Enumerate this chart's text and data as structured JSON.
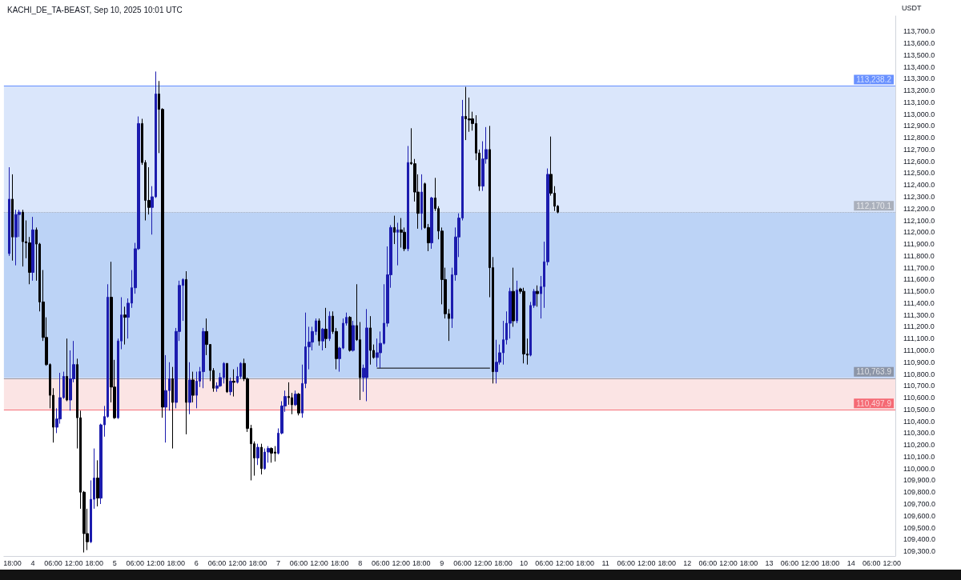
{
  "chart_data": {
    "type": "candlestick",
    "title": "KACHI_DE_TA-BEAST, Sep 10, 2025 10:01 UTC",
    "ylabel": "USDT",
    "xlim": [
      "2025-09-03T15:30",
      "2025-09-14T13:00"
    ],
    "xticks": [
      {
        "value": "2025-09-03T18:00",
        "label": "18:00"
      },
      {
        "value": "2025-09-04T00:00",
        "label": "4"
      },
      {
        "value": "2025-09-04T06:00",
        "label": "06:00"
      },
      {
        "value": "2025-09-04T12:00",
        "label": "12:00"
      },
      {
        "value": "2025-09-04T18:00",
        "label": "18:00"
      },
      {
        "value": "2025-09-05T00:00",
        "label": "5"
      },
      {
        "value": "2025-09-05T06:00",
        "label": "06:00"
      },
      {
        "value": "2025-09-05T12:00",
        "label": "12:00"
      },
      {
        "value": "2025-09-05T18:00",
        "label": "18:00"
      },
      {
        "value": "2025-09-06T00:00",
        "label": "6"
      },
      {
        "value": "2025-09-06T06:00",
        "label": "06:00"
      },
      {
        "value": "2025-09-06T12:00",
        "label": "12:00"
      },
      {
        "value": "2025-09-06T18:00",
        "label": "18:00"
      },
      {
        "value": "2025-09-07T00:00",
        "label": "7"
      },
      {
        "value": "2025-09-07T06:00",
        "label": "06:00"
      },
      {
        "value": "2025-09-07T12:00",
        "label": "12:00"
      },
      {
        "value": "2025-09-07T18:00",
        "label": "18:00"
      },
      {
        "value": "2025-09-08T00:00",
        "label": "8"
      },
      {
        "value": "2025-09-08T06:00",
        "label": "06:00"
      },
      {
        "value": "2025-09-08T12:00",
        "label": "12:00"
      },
      {
        "value": "2025-09-08T18:00",
        "label": "18:00"
      },
      {
        "value": "2025-09-09T00:00",
        "label": "9"
      },
      {
        "value": "2025-09-09T06:00",
        "label": "06:00"
      },
      {
        "value": "2025-09-09T12:00",
        "label": "12:00"
      },
      {
        "value": "2025-09-09T18:00",
        "label": "18:00"
      },
      {
        "value": "2025-09-10T00:00",
        "label": "10"
      },
      {
        "value": "2025-09-10T06:00",
        "label": "06:00"
      },
      {
        "value": "2025-09-10T12:00",
        "label": "12:00"
      },
      {
        "value": "2025-09-10T18:00",
        "label": "18:00"
      },
      {
        "value": "2025-09-11T00:00",
        "label": "11"
      },
      {
        "value": "2025-09-11T06:00",
        "label": "06:00"
      },
      {
        "value": "2025-09-11T12:00",
        "label": "12:00"
      },
      {
        "value": "2025-09-11T18:00",
        "label": "18:00"
      },
      {
        "value": "2025-09-12T00:00",
        "label": "12"
      },
      {
        "value": "2025-09-12T06:00",
        "label": "06:00"
      },
      {
        "value": "2025-09-12T12:00",
        "label": "12:00"
      },
      {
        "value": "2025-09-12T18:00",
        "label": "18:00"
      },
      {
        "value": "2025-09-13T00:00",
        "label": "13"
      },
      {
        "value": "2025-09-13T06:00",
        "label": "06:00"
      },
      {
        "value": "2025-09-13T12:00",
        "label": "12:00"
      },
      {
        "value": "2025-09-13T18:00",
        "label": "18:00"
      },
      {
        "value": "2025-09-14T00:00",
        "label": "14"
      },
      {
        "value": "2025-09-14T06:00",
        "label": "06:00"
      },
      {
        "value": "2025-09-14T12:00",
        "label": "12:00"
      }
    ],
    "ylim": [
      109260,
      113830
    ],
    "yticks": [
      {
        "value": 109300,
        "label": "109,300.0"
      },
      {
        "value": 109400,
        "label": "109,400.0"
      },
      {
        "value": 109500,
        "label": "109,500.0"
      },
      {
        "value": 109600,
        "label": "109,600.0"
      },
      {
        "value": 109700,
        "label": "109,700.0"
      },
      {
        "value": 109800,
        "label": "109,800.0"
      },
      {
        "value": 109900,
        "label": "109,900.0"
      },
      {
        "value": 110000,
        "label": "110,000.0"
      },
      {
        "value": 110100,
        "label": "110,100.0"
      },
      {
        "value": 110200,
        "label": "110,200.0"
      },
      {
        "value": 110300,
        "label": "110,300.0"
      },
      {
        "value": 110400,
        "label": "110,400.0"
      },
      {
        "value": 110500,
        "label": "110,500.0"
      },
      {
        "value": 110600,
        "label": "110,600.0"
      },
      {
        "value": 110700,
        "label": "110,700.0"
      },
      {
        "value": 110800,
        "label": "110,800.0"
      },
      {
        "value": 110900,
        "label": "110,900.0"
      },
      {
        "value": 111000,
        "label": "111,000.0"
      },
      {
        "value": 111100,
        "label": "111,100.0"
      },
      {
        "value": 111200,
        "label": "111,200.0"
      },
      {
        "value": 111300,
        "label": "111,300.0"
      },
      {
        "value": 111400,
        "label": "111,400.0"
      },
      {
        "value": 111500,
        "label": "111,500.0"
      },
      {
        "value": 111600,
        "label": "111,600.0"
      },
      {
        "value": 111700,
        "label": "111,700.0"
      },
      {
        "value": 111800,
        "label": "111,800.0"
      },
      {
        "value": 111900,
        "label": "111,900.0"
      },
      {
        "value": 112000,
        "label": "112,000.0"
      },
      {
        "value": 112100,
        "label": "112,100.0"
      },
      {
        "value": 112200,
        "label": "112,200.0"
      },
      {
        "value": 112300,
        "label": "112,300.0"
      },
      {
        "value": 112400,
        "label": "112,400.0"
      },
      {
        "value": 112500,
        "label": "112,500.0"
      },
      {
        "value": 112600,
        "label": "112,600.0"
      },
      {
        "value": 112700,
        "label": "112,700.0"
      },
      {
        "value": 112800,
        "label": "112,800.0"
      },
      {
        "value": 112900,
        "label": "112,900.0"
      },
      {
        "value": 113000,
        "label": "113,000.0"
      },
      {
        "value": 113100,
        "label": "113,100.0"
      },
      {
        "value": 113200,
        "label": "113,200.0"
      },
      {
        "value": 113300,
        "label": "113,300.0"
      },
      {
        "value": 113400,
        "label": "113,400.0"
      },
      {
        "value": 113500,
        "label": "113,500.0"
      },
      {
        "value": 113600,
        "label": "113,600.0"
      },
      {
        "value": 113700,
        "label": "113,700.0"
      }
    ],
    "bands": [
      {
        "axis": "y",
        "from": 112170.1,
        "to": 113238.2,
        "color": "#dae6fb"
      },
      {
        "axis": "y",
        "from": 110763.9,
        "to": 112170.1,
        "color": "#bcd3f6"
      },
      {
        "axis": "y",
        "from": 110497.9,
        "to": 110763.9,
        "color": "#fbe4e4"
      }
    ],
    "ref_lines": [
      {
        "axis": "y",
        "value": 113238.2,
        "label": "113,238.2",
        "color": "#2962ff",
        "line_style": "solid"
      },
      {
        "axis": "y",
        "value": 112170.1,
        "label": "112,170.1",
        "color": "#9598a1",
        "line_style": "dotted"
      },
      {
        "axis": "y",
        "value": 110763.9,
        "label": "110,763.9",
        "color": "#787b86",
        "line_style": "solid"
      },
      {
        "axis": "y",
        "value": 110497.9,
        "label": "110,497.9",
        "color": "#f23645",
        "line_style": "solid"
      }
    ],
    "series": [
      {
        "type": "line",
        "color": "#000000",
        "x": [
          "2025-09-08T05:00",
          "2025-09-09T14:00"
        ],
        "values": [
          110850,
          110850
        ]
      },
      {
        "type": "candlestick",
        "colors": [
          "#1c1cae",
          "#000000",
          "#1c1cae",
          "#1c1cae",
          "#000000",
          "#000000",
          "#000000",
          "#1c1cae",
          "#000000",
          "#000000",
          "#000000",
          "#000000",
          "#000000",
          "#000000",
          "#1c1cae",
          "#1c1cae",
          "#1c1cae",
          "#000000",
          "#1c1cae",
          "#1c1cae",
          "#000000",
          "#000000",
          "#000000",
          "#000000",
          "#1c1cae",
          "#1c1cae",
          "#000000",
          "#1c1cae",
          "#1c1cae",
          "#1c1cae",
          "#000000",
          "#000000",
          "#1c1cae",
          "#1c1cae",
          "#000000",
          "#1c1cae",
          "#1c1cae",
          "#1c1cae",
          "#1c1cae",
          "#000000",
          "#000000",
          "#000000",
          "#1c1cae",
          "#1c1cae",
          "#000000",
          "#000000",
          "#1c1cae",
          "#1c1cae",
          "#000000",
          "#1c1cae",
          "#1c1cae",
          "#1c1cae",
          "#000000",
          "#1c1cae",
          "#000000",
          "#1c1cae",
          "#1c1cae",
          "#1c1cae",
          "#000000",
          "#000000",
          "#000000",
          "#1c1cae",
          "#1c1cae",
          "#1c1cae",
          "#000000",
          "#1c1cae",
          "#000000",
          "#1c1cae",
          "#1c1cae",
          "#000000",
          "#000000",
          "#000000",
          "#000000",
          "#1c1cae",
          "#000000",
          "#1c1cae",
          "#1c1cae",
          "#000000",
          "#000000",
          "#1c1cae",
          "#1c1cae",
          "#1c1cae",
          "#000000",
          "#000000",
          "#1c1cae",
          "#000000",
          "#1c1cae",
          "#1c1cae",
          "#1c1cae",
          "#1c1cae",
          "#1c1cae",
          "#000000",
          "#1c1cae",
          "#000000",
          "#1c1cae",
          "#000000",
          "#000000",
          "#1c1cae",
          "#1c1cae",
          "#1c1cae",
          "#000000",
          "#1c1cae",
          "#000000",
          "#000000",
          "#1c1cae",
          "#1c1cae",
          "#000000",
          "#000000",
          "#1c1cae",
          "#1c1cae",
          "#1c1cae",
          "#1c1cae",
          "#1c1cae",
          "#000000",
          "#1c1cae",
          "#000000",
          "#000000",
          "#1c1cae",
          "#000000",
          "#000000",
          "#000000",
          "#1c1cae",
          "#000000",
          "#000000",
          "#1c1cae",
          "#000000",
          "#000000",
          "#000000",
          "#000000",
          "#000000",
          "#1c1cae",
          "#1c1cae",
          "#1c1cae",
          "#1c1cae",
          "#000000",
          "#000000",
          "#000000",
          "#000000",
          "#000000",
          "#1c1cae",
          "#1c1cae",
          "#000000",
          "#000000",
          "#1c1cae",
          "#1c1cae",
          "#1c1cae",
          "#1c1cae",
          "#1c1cae",
          "#000000",
          "#1c1cae",
          "#000000",
          "#000000",
          "#000000",
          "#1c1cae",
          "#1c1cae",
          "#000000",
          "#1c1cae",
          "#1c1cae",
          "#1c1cae",
          "#000000",
          "#000000",
          "#000000"
        ],
        "x": [
          "2025-09-03T17:00",
          "2025-09-03T18:00",
          "2025-09-03T19:00",
          "2025-09-03T20:00",
          "2025-09-03T21:00",
          "2025-09-03T22:00",
          "2025-09-03T23:00",
          "2025-09-04T00:00",
          "2025-09-04T01:00",
          "2025-09-04T02:00",
          "2025-09-04T03:00",
          "2025-09-04T04:00",
          "2025-09-04T05:00",
          "2025-09-04T06:00",
          "2025-09-04T07:00",
          "2025-09-04T08:00",
          "2025-09-04T09:00",
          "2025-09-04T10:00",
          "2025-09-04T11:00",
          "2025-09-04T12:00",
          "2025-09-04T13:00",
          "2025-09-04T14:00",
          "2025-09-04T15:00",
          "2025-09-04T16:00",
          "2025-09-04T17:00",
          "2025-09-04T18:00",
          "2025-09-04T19:00",
          "2025-09-04T20:00",
          "2025-09-04T21:00",
          "2025-09-04T22:00",
          "2025-09-04T23:00",
          "2025-09-05T00:00",
          "2025-09-05T01:00",
          "2025-09-05T02:00",
          "2025-09-05T03:00",
          "2025-09-05T04:00",
          "2025-09-05T05:00",
          "2025-09-05T06:00",
          "2025-09-05T07:00",
          "2025-09-05T08:00",
          "2025-09-05T09:00",
          "2025-09-05T10:00",
          "2025-09-05T11:00",
          "2025-09-05T12:00",
          "2025-09-05T13:00",
          "2025-09-05T14:00",
          "2025-09-05T15:00",
          "2025-09-05T16:00",
          "2025-09-05T17:00",
          "2025-09-05T18:00",
          "2025-09-05T19:00",
          "2025-09-05T20:00",
          "2025-09-05T21:00",
          "2025-09-05T22:00",
          "2025-09-05T23:00",
          "2025-09-06T00:00",
          "2025-09-06T01:00",
          "2025-09-06T02:00",
          "2025-09-06T03:00",
          "2025-09-06T04:00",
          "2025-09-06T05:00",
          "2025-09-06T06:00",
          "2025-09-06T07:00",
          "2025-09-06T08:00",
          "2025-09-06T09:00",
          "2025-09-06T10:00",
          "2025-09-06T11:00",
          "2025-09-06T12:00",
          "2025-09-06T13:00",
          "2025-09-06T14:00",
          "2025-09-06T15:00",
          "2025-09-06T16:00",
          "2025-09-06T17:00",
          "2025-09-06T18:00",
          "2025-09-06T19:00",
          "2025-09-06T20:00",
          "2025-09-06T21:00",
          "2025-09-06T22:00",
          "2025-09-06T23:00",
          "2025-09-07T00:00",
          "2025-09-07T01:00",
          "2025-09-07T02:00",
          "2025-09-07T03:00",
          "2025-09-07T04:00",
          "2025-09-07T05:00",
          "2025-09-07T06:00",
          "2025-09-07T07:00",
          "2025-09-07T08:00",
          "2025-09-07T09:00",
          "2025-09-07T10:00",
          "2025-09-07T11:00",
          "2025-09-07T12:00",
          "2025-09-07T13:00",
          "2025-09-07T14:00",
          "2025-09-07T15:00",
          "2025-09-07T16:00",
          "2025-09-07T17:00",
          "2025-09-07T18:00",
          "2025-09-07T19:00",
          "2025-09-07T20:00",
          "2025-09-07T21:00",
          "2025-09-07T22:00",
          "2025-09-07T23:00",
          "2025-09-08T00:00",
          "2025-09-08T01:00",
          "2025-09-08T02:00",
          "2025-09-08T03:00",
          "2025-09-08T04:00",
          "2025-09-08T05:00",
          "2025-09-08T06:00",
          "2025-09-08T07:00",
          "2025-09-08T08:00",
          "2025-09-08T09:00",
          "2025-09-08T10:00",
          "2025-09-08T11:00",
          "2025-09-08T12:00",
          "2025-09-08T13:00",
          "2025-09-08T14:00",
          "2025-09-08T15:00",
          "2025-09-08T16:00",
          "2025-09-08T17:00",
          "2025-09-08T18:00",
          "2025-09-08T19:00",
          "2025-09-08T20:00",
          "2025-09-08T21:00",
          "2025-09-08T22:00",
          "2025-09-08T23:00",
          "2025-09-09T00:00",
          "2025-09-09T01:00",
          "2025-09-09T02:00",
          "2025-09-09T03:00",
          "2025-09-09T04:00",
          "2025-09-09T05:00",
          "2025-09-09T06:00",
          "2025-09-09T07:00",
          "2025-09-09T08:00",
          "2025-09-09T09:00",
          "2025-09-09T10:00",
          "2025-09-09T11:00",
          "2025-09-09T12:00",
          "2025-09-09T13:00",
          "2025-09-09T14:00",
          "2025-09-09T15:00",
          "2025-09-09T16:00",
          "2025-09-09T17:00",
          "2025-09-09T18:00",
          "2025-09-09T19:00",
          "2025-09-09T20:00",
          "2025-09-09T21:00",
          "2025-09-09T22:00",
          "2025-09-09T23:00",
          "2025-09-10T00:00",
          "2025-09-10T01:00",
          "2025-09-10T02:00",
          "2025-09-10T03:00",
          "2025-09-10T04:00",
          "2025-09-10T05:00",
          "2025-09-10T06:00",
          "2025-09-10T07:00",
          "2025-09-10T08:00",
          "2025-09-10T09:00",
          "2025-09-10T10:00"
        ],
        "ohlc": [
          [
            111820,
            112550,
            111800,
            112280
          ],
          [
            112280,
            112490,
            111760,
            111960
          ],
          [
            111960,
            112190,
            111720,
            112150
          ],
          [
            112150,
            112190,
            111960,
            112170
          ],
          [
            112170,
            112190,
            111710,
            111920
          ],
          [
            111920,
            112100,
            111780,
            111910
          ],
          [
            111910,
            111960,
            111560,
            111660
          ],
          [
            111660,
            112130,
            111590,
            112020
          ],
          [
            112020,
            112040,
            111590,
            111900
          ],
          [
            111900,
            111910,
            111330,
            111410
          ],
          [
            111410,
            111680,
            111080,
            111110
          ],
          [
            111110,
            111280,
            110870,
            110880
          ],
          [
            110880,
            110890,
            110510,
            110620
          ],
          [
            110620,
            110680,
            110220,
            110350
          ],
          [
            110350,
            110510,
            110300,
            110420
          ],
          [
            110420,
            110810,
            110380,
            110600
          ],
          [
            110600,
            110820,
            110590,
            110780
          ],
          [
            110780,
            111100,
            110570,
            110580
          ],
          [
            110580,
            111000,
            110490,
            110760
          ],
          [
            110760,
            111080,
            110730,
            110880
          ],
          [
            110880,
            110930,
            110170,
            110430
          ],
          [
            110430,
            110490,
            109660,
            109800
          ],
          [
            109800,
            109810,
            109290,
            109450
          ],
          [
            109450,
            109660,
            109310,
            109380
          ],
          [
            109380,
            109900,
            109370,
            109740
          ],
          [
            109740,
            110170,
            109660,
            109920
          ],
          [
            109920,
            110070,
            109680,
            109750
          ],
          [
            109750,
            110380,
            109700,
            110370
          ],
          [
            110370,
            110530,
            110270,
            110440
          ],
          [
            110440,
            111560,
            110430,
            111450
          ],
          [
            111450,
            111750,
            110560,
            110690
          ],
          [
            110690,
            110920,
            110420,
            110430
          ],
          [
            110430,
            111100,
            110420,
            111080
          ],
          [
            111080,
            111450,
            111010,
            111300
          ],
          [
            111300,
            111370,
            111050,
            111280
          ],
          [
            111280,
            111440,
            111100,
            111400
          ],
          [
            111400,
            111680,
            111360,
            111530
          ],
          [
            111530,
            111910,
            111480,
            111860
          ],
          [
            111860,
            112980,
            111850,
            112920
          ],
          [
            112920,
            112960,
            112570,
            112590
          ],
          [
            112590,
            112610,
            112100,
            112270
          ],
          [
            112270,
            112550,
            112150,
            112210
          ],
          [
            112210,
            112390,
            111980,
            112300
          ],
          [
            112300,
            113360,
            112290,
            113170
          ],
          [
            113170,
            113280,
            112670,
            113040
          ],
          [
            113040,
            113050,
            110430,
            110520
          ],
          [
            110520,
            110960,
            110220,
            110660
          ],
          [
            110660,
            110900,
            110490,
            110760
          ],
          [
            110760,
            110860,
            110170,
            110560
          ],
          [
            110560,
            111190,
            110510,
            111160
          ],
          [
            111160,
            111590,
            111080,
            111550
          ],
          [
            111550,
            111610,
            111250,
            111600
          ],
          [
            111600,
            111670,
            110290,
            110560
          ],
          [
            110560,
            110900,
            110460,
            110750
          ],
          [
            110750,
            110820,
            110560,
            110620
          ],
          [
            110620,
            110820,
            110510,
            110740
          ],
          [
            110740,
            110860,
            110690,
            110820
          ],
          [
            110820,
            111190,
            110680,
            111160
          ],
          [
            111160,
            111270,
            110960,
            111050
          ],
          [
            111050,
            111050,
            110740,
            110830
          ],
          [
            110830,
            110850,
            110650,
            110680
          ],
          [
            110680,
            110730,
            110650,
            110700
          ],
          [
            110700,
            110810,
            110690,
            110770
          ],
          [
            110770,
            110900,
            110720,
            110890
          ],
          [
            110890,
            110890,
            110640,
            110650
          ],
          [
            110650,
            110770,
            110620,
            110740
          ],
          [
            110740,
            110840,
            110610,
            110730
          ],
          [
            110730,
            110860,
            110720,
            110780
          ],
          [
            110780,
            110900,
            110760,
            110890
          ],
          [
            110890,
            110930,
            110740,
            110760
          ],
          [
            110760,
            110770,
            110310,
            110340
          ],
          [
            110340,
            110370,
            109900,
            110210
          ],
          [
            110210,
            110230,
            109940,
            110090
          ],
          [
            110090,
            110210,
            110030,
            110180
          ],
          [
            110180,
            110210,
            109950,
            110000
          ],
          [
            110000,
            110170,
            109990,
            110140
          ],
          [
            110140,
            110190,
            110050,
            110170
          ],
          [
            110170,
            110180,
            110050,
            110130
          ],
          [
            110140,
            110190,
            110060,
            110130
          ],
          [
            110130,
            110340,
            110120,
            110300
          ],
          [
            110300,
            110570,
            110290,
            110530
          ],
          [
            110530,
            110660,
            110480,
            110610
          ],
          [
            110610,
            110730,
            110540,
            110600
          ],
          [
            110600,
            110640,
            110460,
            110540
          ],
          [
            110540,
            110660,
            110530,
            110630
          ],
          [
            110630,
            110640,
            110450,
            110470
          ],
          [
            110470,
            110880,
            110430,
            110720
          ],
          [
            110720,
            111320,
            110680,
            111030
          ],
          [
            111030,
            111200,
            110840,
            111070
          ],
          [
            111070,
            111200,
            111000,
            111160
          ],
          [
            111160,
            111270,
            111130,
            111250
          ],
          [
            111250,
            111270,
            111040,
            111080
          ],
          [
            111080,
            111190,
            111000,
            111180
          ],
          [
            111180,
            111360,
            111020,
            111100
          ],
          [
            111100,
            111330,
            111080,
            111290
          ],
          [
            111290,
            111330,
            111140,
            111160
          ],
          [
            111160,
            111190,
            110840,
            110930
          ],
          [
            110930,
            111030,
            110820,
            111020
          ],
          [
            111020,
            111270,
            111010,
            111230
          ],
          [
            111230,
            111320,
            111210,
            111280
          ],
          [
            111280,
            111290,
            110990,
            111000
          ],
          [
            111000,
            111250,
            110990,
            111210
          ],
          [
            111210,
            111560,
            111080,
            111090
          ],
          [
            111090,
            111240,
            110580,
            110770
          ],
          [
            110770,
            110880,
            110650,
            110850
          ],
          [
            110770,
            111350,
            110570,
            111190
          ],
          [
            111190,
            111290,
            110880,
            111000
          ],
          [
            111000,
            111050,
            110930,
            110940
          ],
          [
            110940,
            111100,
            110860,
            110980
          ],
          [
            110980,
            111160,
            110850,
            111060
          ],
          [
            111060,
            111560,
            111050,
            111230
          ],
          [
            111230,
            111880,
            111200,
            111640
          ],
          [
            111640,
            112060,
            111530,
            112040
          ],
          [
            112040,
            112140,
            111900,
            112000
          ],
          [
            112000,
            112080,
            111720,
            112020
          ],
          [
            112020,
            112120,
            111870,
            112000
          ],
          [
            112000,
            112040,
            111840,
            111860
          ],
          [
            111860,
            112730,
            111840,
            112590
          ],
          [
            112590,
            112880,
            112570,
            112580
          ],
          [
            112580,
            112620,
            112260,
            112340
          ],
          [
            112340,
            112490,
            112030,
            112160
          ],
          [
            112160,
            112490,
            112020,
            112340
          ],
          [
            112410,
            112420,
            112030,
            112040
          ],
          [
            112040,
            112070,
            111840,
            111910
          ],
          [
            111910,
            112300,
            111860,
            112290
          ],
          [
            112290,
            112460,
            112180,
            112200
          ],
          [
            112200,
            112220,
            111940,
            112010
          ],
          [
            112010,
            112040,
            111390,
            111600
          ],
          [
            111600,
            111700,
            111270,
            111310
          ],
          [
            111310,
            111350,
            111080,
            111270
          ],
          [
            111270,
            111700,
            111190,
            111640
          ],
          [
            111640,
            112040,
            111590,
            111960
          ],
          [
            111960,
            112160,
            111790,
            112120
          ],
          [
            112120,
            113120,
            112100,
            112980
          ],
          [
            112980,
            113230,
            112780,
            112960
          ],
          [
            112960,
            113140,
            112850,
            112950
          ],
          [
            112960,
            113020,
            112860,
            112920
          ],
          [
            112920,
            112990,
            112610,
            112670
          ],
          [
            112670,
            112700,
            112350,
            112390
          ],
          [
            112390,
            112770,
            112350,
            112620
          ],
          [
            112620,
            112890,
            112580,
            112700
          ],
          [
            112700,
            112900,
            111450,
            111700
          ],
          [
            111700,
            111790,
            110720,
            110820
          ],
          [
            110820,
            111090,
            110720,
            110900
          ],
          [
            110900,
            111050,
            110880,
            110980
          ],
          [
            110980,
            111250,
            110880,
            111090
          ],
          [
            111090,
            111330,
            111050,
            111230
          ],
          [
            111230,
            111530,
            111100,
            111500
          ],
          [
            111500,
            111700,
            111200,
            111250
          ],
          [
            111250,
            111590,
            111230,
            111510
          ],
          [
            111520,
            111530,
            111480,
            111500
          ],
          [
            111500,
            111530,
            110890,
            110970
          ],
          [
            110970,
            111100,
            110880,
            110960
          ],
          [
            110960,
            111410,
            110950,
            111380
          ],
          [
            111380,
            111520,
            111360,
            111500
          ],
          [
            111500,
            111550,
            111370,
            111480
          ],
          [
            111480,
            111630,
            111270,
            111540
          ],
          [
            111540,
            111920,
            111360,
            111750
          ],
          [
            111750,
            112540,
            111720,
            112490
          ],
          [
            112490,
            112810,
            112310,
            112330
          ],
          [
            112330,
            112390,
            112180,
            112220
          ],
          [
            112220,
            112230,
            112160,
            112170.1
          ]
        ]
      }
    ]
  }
}
